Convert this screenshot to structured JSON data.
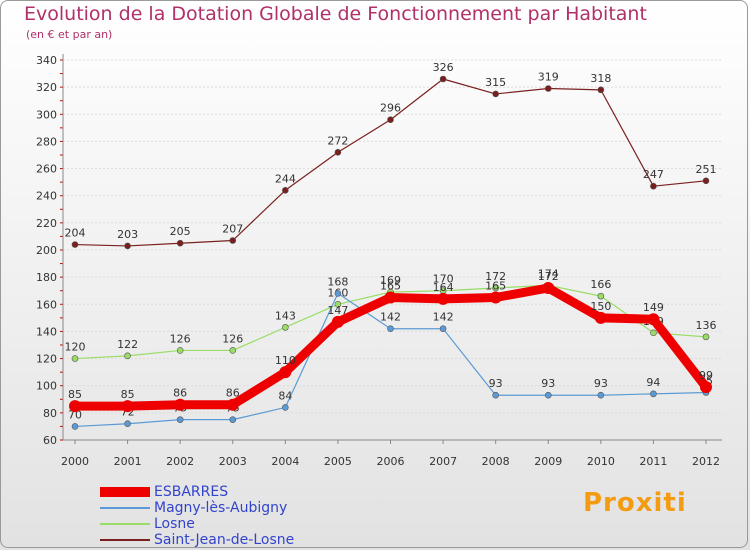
{
  "header": {
    "title": "Evolution de la Dotation Globale de Fonctionnement par Habitant",
    "subtitle": "(en € et par an)"
  },
  "logo": {
    "text": "Proxiti"
  },
  "chart_data": {
    "type": "line",
    "title": "Evolution de la Dotation Globale de Fonctionnement par Habitant",
    "subtitle": "(en € et par an)",
    "xlabel": "",
    "ylabel": "",
    "categories": [
      "2000",
      "2001",
      "2002",
      "2003",
      "2004",
      "2005",
      "2006",
      "2007",
      "2008",
      "2009",
      "2010",
      "2011",
      "2012"
    ],
    "y_ticks": [
      "60",
      "80",
      "100",
      "120",
      "140",
      "160",
      "180",
      "200",
      "220",
      "240",
      "260",
      "280",
      "300",
      "320",
      "340"
    ],
    "ylim": [
      60,
      340
    ],
    "grid": "horizontal",
    "legend_position": "bottom-left",
    "series": [
      {
        "name": "ESBARRES",
        "color": "#ee0000",
        "values": [
          85,
          85,
          86,
          86,
          110,
          147,
          165,
          164,
          165,
          172,
          150,
          149,
          99
        ]
      },
      {
        "name": "Magny-lès-Aubigny",
        "color": "#5b9bd5",
        "values": [
          70,
          72,
          75,
          75,
          84,
          168,
          142,
          142,
          93,
          93,
          93,
          94,
          95
        ]
      },
      {
        "name": "Losne",
        "color": "#99dd66",
        "values": [
          120,
          122,
          126,
          126,
          143,
          160,
          169,
          170,
          172,
          174,
          166,
          139,
          136
        ]
      },
      {
        "name": "Saint-Jean-de-Losne",
        "color": "#7a1f1f",
        "values": [
          204,
          203,
          205,
          207,
          244,
          272,
          296,
          326,
          315,
          319,
          318,
          247,
          251
        ]
      }
    ]
  }
}
